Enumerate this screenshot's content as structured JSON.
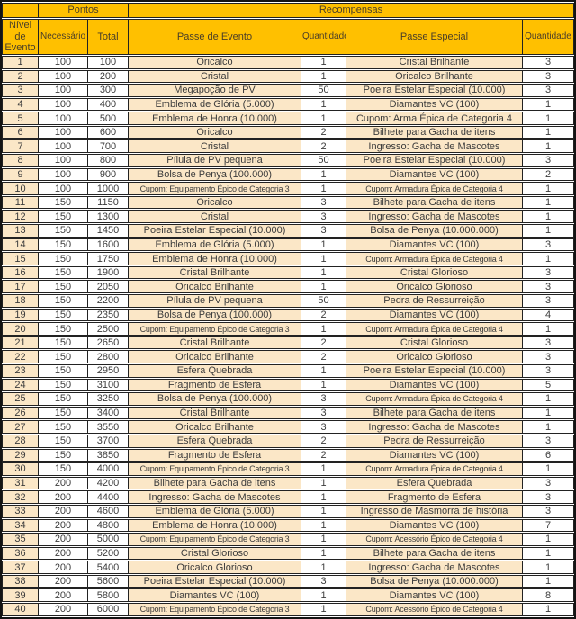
{
  "header": {
    "nivel_de_evento": "Nível de Evento",
    "pontos": "Pontos",
    "recompensas": "Recompensas",
    "necessario": "Necessário",
    "total": "Total",
    "passe_de_evento": "Passe de Evento",
    "quantidade_1": "Quantidade",
    "passe_especial": "Passe Especial",
    "quantidade_2": "Quantidade"
  },
  "colors": {
    "header_bg": "#FFC000",
    "accent_row_bg": "#FBE7C7",
    "border": "#222222"
  },
  "rows": [
    [
      1,
      100,
      100,
      "Oricalco",
      1,
      "Cristal Brilhante",
      3
    ],
    [
      2,
      100,
      200,
      "Cristal",
      1,
      "Oricalco Brilhante",
      3
    ],
    [
      3,
      100,
      300,
      "Megapoção de PV",
      50,
      "Poeira Estelar Especial (10.000)",
      3
    ],
    [
      4,
      100,
      400,
      "Emblema de Glória (5.000)",
      1,
      "Diamantes VC (100)",
      1
    ],
    [
      5,
      100,
      500,
      "Emblema de Honra (10.000)",
      1,
      "Cupom: Arma Épica de Categoria 4",
      1
    ],
    [
      6,
      100,
      600,
      "Oricalco",
      2,
      "Bilhete para Gacha de itens",
      1
    ],
    [
      7,
      100,
      700,
      "Cristal",
      2,
      "Ingresso: Gacha de Mascotes",
      1
    ],
    [
      8,
      100,
      800,
      "Pílula de PV pequena",
      50,
      "Poeira Estelar Especial (10.000)",
      3
    ],
    [
      9,
      100,
      900,
      "Bolsa de Penya (100.000)",
      1,
      "Diamantes VC (100)",
      2
    ],
    [
      10,
      100,
      1000,
      "Cupom: Equipamento Épico de Categoria 3",
      1,
      "Cupom: Armadura Épica de Categoria 4",
      1
    ],
    [
      11,
      150,
      1150,
      "Oricalco",
      3,
      "Bilhete para Gacha de itens",
      1
    ],
    [
      12,
      150,
      1300,
      "Cristal",
      3,
      "Ingresso: Gacha de Mascotes",
      1
    ],
    [
      13,
      150,
      1450,
      "Poeira Estelar Especial (10.000)",
      3,
      "Bolsa de Penya (10.000.000)",
      1
    ],
    [
      14,
      150,
      1600,
      "Emblema de Glória (5.000)",
      1,
      "Diamantes VC (100)",
      3
    ],
    [
      15,
      150,
      1750,
      "Emblema de Honra (10.000)",
      1,
      "Cupom: Armadura Épica de Categoria 4",
      1
    ],
    [
      16,
      150,
      1900,
      "Cristal Brilhante",
      1,
      "Cristal Glorioso",
      3
    ],
    [
      17,
      150,
      2050,
      "Oricalco Brilhante",
      1,
      "Oricalco Glorioso",
      3
    ],
    [
      18,
      150,
      2200,
      "Pílula de PV pequena",
      50,
      "Pedra de Ressurreição",
      3
    ],
    [
      19,
      150,
      2350,
      "Bolsa de Penya (100.000)",
      2,
      "Diamantes VC (100)",
      4
    ],
    [
      20,
      150,
      2500,
      "Cupom: Equipamento Épico de Categoria 3",
      1,
      "Cupom: Armadura Épica de Categoria 4",
      1
    ],
    [
      21,
      150,
      2650,
      "Cristal Brilhante",
      2,
      "Cristal Glorioso",
      3
    ],
    [
      22,
      150,
      2800,
      "Oricalco Brilhante",
      2,
      "Oricalco Glorioso",
      3
    ],
    [
      23,
      150,
      2950,
      "Esfera Quebrada",
      1,
      "Poeira Estelar Especial (10.000)",
      3
    ],
    [
      24,
      150,
      3100,
      "Fragmento de Esfera",
      1,
      "Diamantes VC (100)",
      5
    ],
    [
      25,
      150,
      3250,
      "Bolsa de Penya (100.000)",
      3,
      "Cupom: Armadura Épica de Categoria 4",
      1
    ],
    [
      26,
      150,
      3400,
      "Cristal Brilhante",
      3,
      "Bilhete para Gacha de itens",
      1
    ],
    [
      27,
      150,
      3550,
      "Oricalco Brilhante",
      3,
      "Ingresso: Gacha de Mascotes",
      1
    ],
    [
      28,
      150,
      3700,
      "Esfera Quebrada",
      2,
      "Pedra de Ressurreição",
      3
    ],
    [
      29,
      150,
      3850,
      "Fragmento de Esfera",
      2,
      "Diamantes VC (100)",
      6
    ],
    [
      30,
      150,
      4000,
      "Cupom: Equipamento Épico de Categoria 3",
      1,
      "Cupom: Armadura Épica de Categoria 4",
      1
    ],
    [
      31,
      200,
      4200,
      "Bilhete para Gacha de itens",
      1,
      "Esfera Quebrada",
      3
    ],
    [
      32,
      200,
      4400,
      "Ingresso: Gacha de Mascotes",
      1,
      "Fragmento de Esfera",
      3
    ],
    [
      33,
      200,
      4600,
      "Emblema de Glória (5.000)",
      1,
      "Ingresso de Masmorra de história",
      3
    ],
    [
      34,
      200,
      4800,
      "Emblema de Honra (10.000)",
      1,
      "Diamantes VC (100)",
      7
    ],
    [
      35,
      200,
      5000,
      "Cupom: Equipamento Épico de Categoria 3",
      1,
      "Cupom: Acessório Épico de Categoria 4",
      1
    ],
    [
      36,
      200,
      5200,
      "Cristal Glorioso",
      1,
      "Bilhete para Gacha de itens",
      1
    ],
    [
      37,
      200,
      5400,
      "Oricalco Glorioso",
      1,
      "Ingresso: Gacha de Mascotes",
      1
    ],
    [
      38,
      200,
      5600,
      "Poeira Estelar Especial (10.000)",
      3,
      "Bolsa de Penya (10.000.000)",
      1
    ],
    [
      39,
      200,
      5800,
      "Diamantes VC (100)",
      1,
      "Diamantes VC (100)",
      8
    ],
    [
      40,
      200,
      6000,
      "Cupom: Equipamento Épico de Categoria 3",
      1,
      "Cupom: Acessório Épico de Categoria 4",
      1
    ]
  ]
}
